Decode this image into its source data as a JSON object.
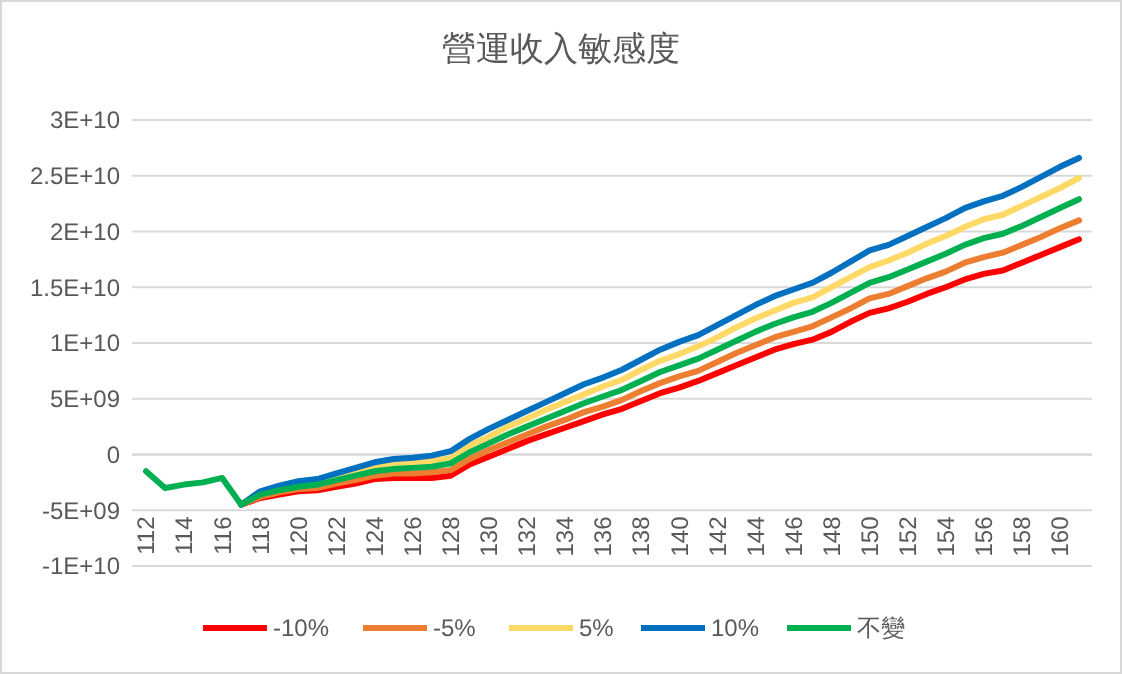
{
  "chart_data": {
    "type": "line",
    "title": "營運收入敏感度",
    "categories": [
      "112",
      null,
      "114",
      null,
      "116",
      null,
      "118",
      null,
      "120",
      null,
      "122",
      null,
      "124",
      null,
      "126",
      null,
      "128",
      null,
      "130",
      null,
      "132",
      null,
      "134",
      null,
      "136",
      null,
      "138",
      null,
      "140",
      null,
      "142",
      null,
      "144",
      null,
      "146",
      null,
      "148",
      null,
      "150",
      null,
      "152",
      null,
      "154",
      null,
      "156",
      null,
      "158",
      null,
      "160",
      null
    ],
    "ylim": [
      -10000000000.0,
      30000000000.0
    ],
    "yticks": [
      {
        "value": -10000000000.0,
        "label": "-1E+10"
      },
      {
        "value": -5000000000.0,
        "label": "-5E+09"
      },
      0,
      {
        "value": 5000000000.0,
        "label": "5E+09"
      },
      {
        "value": 10000000000.0,
        "label": "1E+10"
      },
      {
        "value": 15000000000.0,
        "label": "1.5E+10"
      },
      {
        "value": 20000000000.0,
        "label": "2E+10"
      },
      {
        "value": 25000000000.0,
        "label": "2.5E+10"
      },
      {
        "value": 30000000000.0,
        "label": "3E+10"
      }
    ],
    "grid": "y",
    "legend": "bottom",
    "marker": "none",
    "series": [
      {
        "name": "-10%",
        "color": "#ff0000",
        "values": [
          null,
          null,
          null,
          null,
          null,
          -4500000000.0,
          -3900000000.0,
          -3600000000.0,
          -3300000000.0,
          -3200000000.0,
          -2900000000.0,
          -2600000000.0,
          -2200000000.0,
          -2100000000.0,
          -2100000000.0,
          -2100000000.0,
          -1900000000.0,
          -900000000.0,
          -200000000.0,
          500000000.0,
          1200000000.0,
          1800000000.0,
          2400000000.0,
          3000000000.0,
          3600000000.0,
          4100000000.0,
          4800000000.0,
          5500000000.0,
          6000000000.0,
          6600000000.0,
          7300000000.0,
          8000000000.0,
          8700000000.0,
          9400000000.0,
          9900000000.0,
          10300000000.0,
          11000000000.0,
          11900000000.0,
          12700000000.0,
          13100000000.0,
          13700000000.0,
          14400000000.0,
          15000000000.0,
          15700000000.0,
          16200000000.0,
          16500000000.0,
          17200000000.0,
          17900000000.0,
          18600000000.0,
          19300000000.0
        ]
      },
      {
        "name": "-5%",
        "color": "#ed7d31",
        "values": [
          null,
          null,
          null,
          null,
          null,
          -4500000000.0,
          -3800000000.0,
          -3400000000.0,
          -3100000000.0,
          -3000000000.0,
          -2600000000.0,
          -2300000000.0,
          -1900000000.0,
          -1700000000.0,
          -1700000000.0,
          -1600000000.0,
          -1400000000.0,
          -400000000.0,
          400000000.0,
          1100000000.0,
          1800000000.0,
          2500000000.0,
          3100000000.0,
          3800000000.0,
          4300000000.0,
          4900000000.0,
          5700000000.0,
          6400000000.0,
          7000000000.0,
          7500000000.0,
          8300000000.0,
          9100000000.0,
          9800000000.0,
          10500000000.0,
          11000000000.0,
          11500000000.0,
          12300000000.0,
          13100000000.0,
          14000000000.0,
          14400000000.0,
          15100000000.0,
          15800000000.0,
          16400000000.0,
          17200000000.0,
          17700000000.0,
          18100000000.0,
          18800000000.0,
          19500000000.0,
          20300000000.0,
          21000000000.0
        ]
      },
      {
        "name": "5%",
        "color": "#ffd966",
        "values": [
          null,
          null,
          null,
          null,
          null,
          null,
          null,
          null,
          null,
          null,
          -2000000000.0,
          -1600000000.0,
          -1100000000.0,
          -900000000.0,
          -700000000.0,
          -600000000.0,
          -300000000.0,
          800000000.0,
          1600000000.0,
          2500000000.0,
          3200000000.0,
          4000000000.0,
          4700000000.0,
          5400000000.0,
          6100000000.0,
          6700000000.0,
          7600000000.0,
          8400000000.0,
          9000000000.0,
          9700000000.0,
          10500000000.0,
          11400000000.0,
          12200000000.0,
          12900000000.0,
          13600000000.0,
          14100000000.0,
          15000000000.0,
          15900000000.0,
          16800000000.0,
          17400000000.0,
          18100000000.0,
          18900000000.0,
          19600000000.0,
          20400000000.0,
          21100000000.0,
          21500000000.0,
          22300000000.0,
          23100000000.0,
          23900000000.0,
          24800000000.0
        ]
      },
      {
        "name": "10%",
        "color": "#0070c0",
        "values": [
          null,
          null,
          null,
          null,
          null,
          -4500000000.0,
          -3300000000.0,
          -2800000000.0,
          -2400000000.0,
          -2200000000.0,
          -1700000000.0,
          -1200000000.0,
          -700000000.0,
          -400000000.0,
          -300000000.0,
          -100000000.0,
          300000000.0,
          1400000000.0,
          2300000000.0,
          3100000000.0,
          3900000000.0,
          4700000000.0,
          5500000000.0,
          6300000000.0,
          6900000000.0,
          7600000000.0,
          8500000000.0,
          9400000000.0,
          10100000000.0,
          10700000000.0,
          11600000000.0,
          12500000000.0,
          13400000000.0,
          14200000000.0,
          14800000000.0,
          15400000000.0,
          16300000000.0,
          17300000000.0,
          18300000000.0,
          18800000000.0,
          19600000000.0,
          20400000000.0,
          21200000000.0,
          22100000000.0,
          22700000000.0,
          23200000000.0,
          24000000000.0,
          24900000000.0,
          25800000000.0,
          26600000000.0
        ]
      },
      {
        "name": "不變",
        "color": "#00b050",
        "values": [
          -1500000000.0,
          -3000000000.0,
          -2700000000.0,
          -2500000000.0,
          -2100000000.0,
          -4500000000.0,
          -3600000000.0,
          -3200000000.0,
          -2900000000.0,
          -2700000000.0,
          -2300000000.0,
          -1900000000.0,
          -1500000000.0,
          -1300000000.0,
          -1200000000.0,
          -1100000000.0,
          -800000000.0,
          200000000.0,
          1000000000.0,
          1800000000.0,
          2500000000.0,
          3200000000.0,
          3900000000.0,
          4600000000.0,
          5200000000.0,
          5800000000.0,
          6600000000.0,
          7400000000.0,
          8000000000.0,
          8600000000.0,
          9400000000.0,
          10200000000.0,
          11000000000.0,
          11700000000.0,
          12300000000.0,
          12800000000.0,
          13600000000.0,
          14500000000.0,
          15400000000.0,
          15900000000.0,
          16600000000.0,
          17300000000.0,
          18000000000.0,
          18800000000.0,
          19400000000.0,
          19800000000.0,
          20500000000.0,
          21300000000.0,
          22100000000.0,
          22900000000.0
        ]
      }
    ]
  }
}
